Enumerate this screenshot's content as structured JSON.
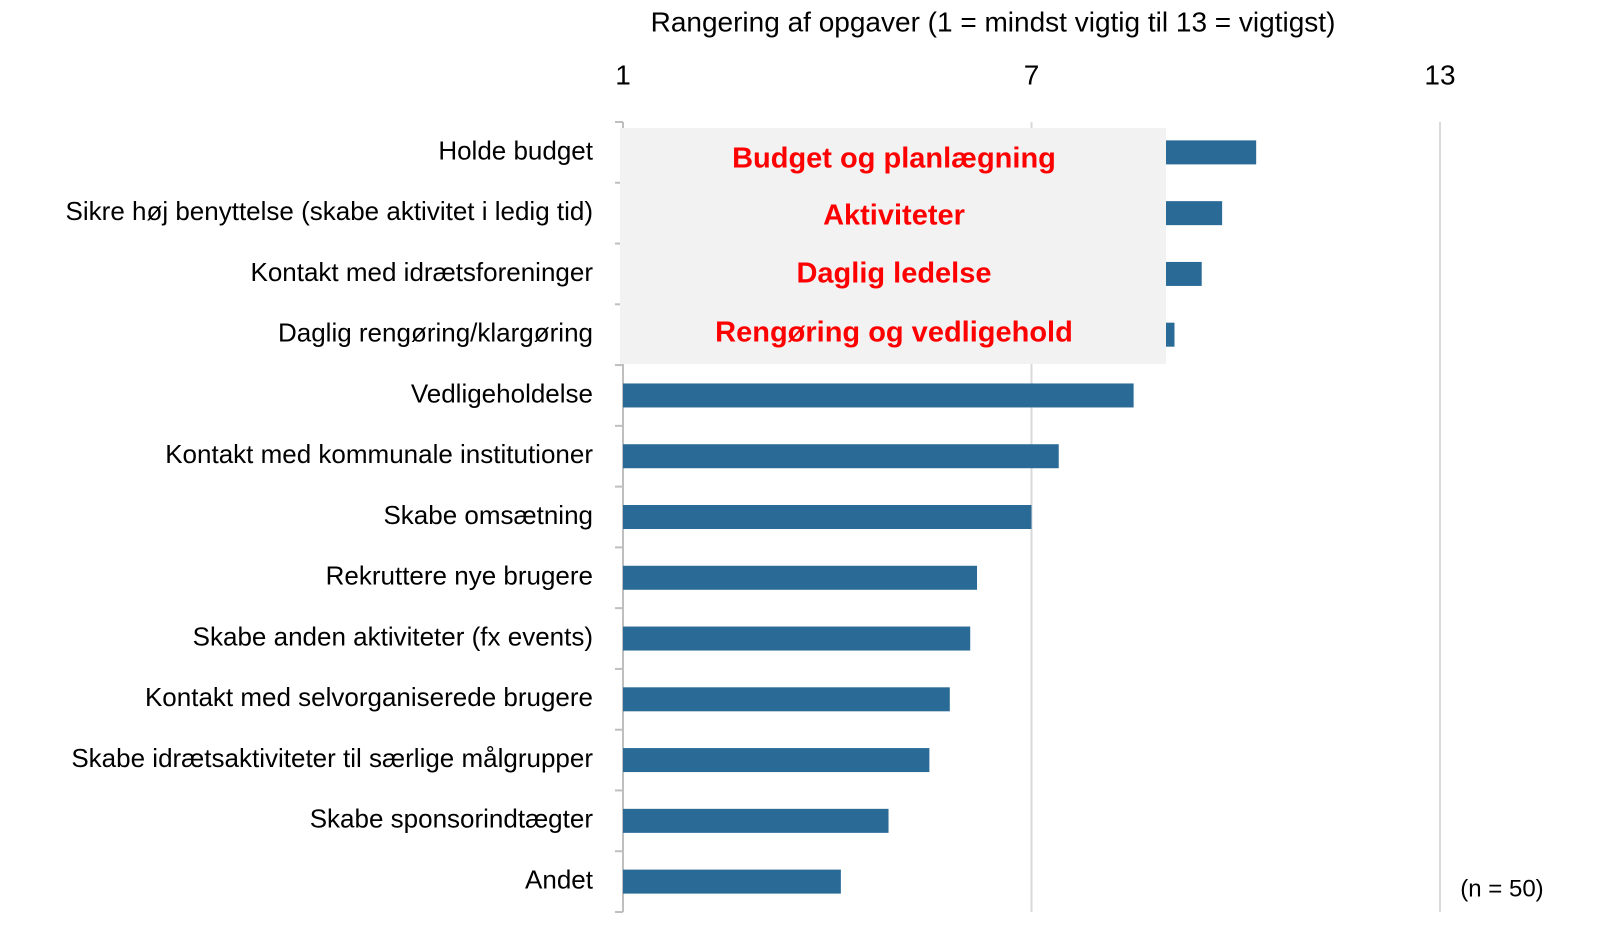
{
  "chart_data": {
    "type": "barh",
    "title": "Rangering af opgaver (1 = mindst vigtig til 13 = vigtigst)",
    "categories": [
      "Holde budget",
      "Sikre høj benyttelse (skabe aktivitet i ledig tid)",
      "Kontakt med idrætsforeninger",
      "Daglig rengøring/klargøring",
      "Vedligeholdelse",
      "Kontakt med kommunale institutioner",
      "Skabe omsætning",
      "Rekruttere nye brugere",
      "Skabe anden aktiviteter (fx events)",
      "Kontakt med selvorganiserede brugere",
      "Skabe idrætsaktiviteter til særlige målgrupper",
      "Skabe sponsorindtægter",
      "Andet"
    ],
    "values": [
      10.3,
      9.8,
      9.5,
      9.1,
      8.5,
      7.4,
      7.0,
      6.2,
      6.1,
      5.8,
      5.5,
      4.9,
      4.2
    ],
    "color": "#2a6a96",
    "xlim": [
      1,
      13
    ],
    "xticks": [
      1,
      7,
      13
    ],
    "grid": true,
    "annotations": [
      "Budget og planlægning",
      "Aktiviteter",
      "Daglig ledelse",
      "Rengøring og vedligehold"
    ],
    "note": "(n = 50)"
  }
}
